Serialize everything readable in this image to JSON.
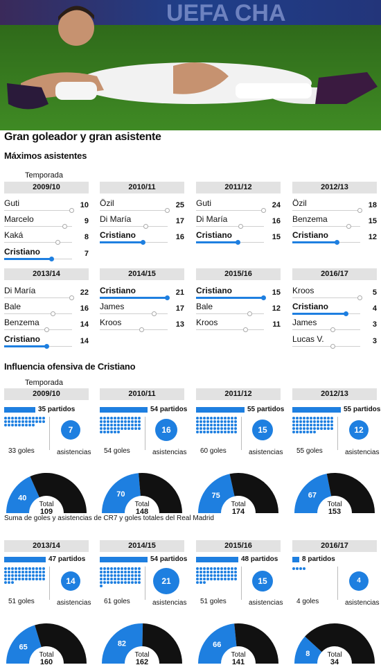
{
  "title": "Gran goleador y gran asistente",
  "section1": {
    "title": "Máximos asistentes",
    "temporada_label": "Temporada",
    "seasons": [
      {
        "year": "2009/10",
        "rows": [
          {
            "name": "Guti",
            "value": 10
          },
          {
            "name": "Marcelo",
            "value": 9
          },
          {
            "name": "Kaká",
            "value": 8
          },
          {
            "name": "Cristiano",
            "value": 7,
            "highlight": true
          }
        ]
      },
      {
        "year": "2010/11",
        "rows": [
          {
            "name": "Özil",
            "value": 25
          },
          {
            "name": "Di María",
            "value": 17
          },
          {
            "name": "Cristiano",
            "value": 16,
            "highlight": true
          }
        ]
      },
      {
        "year": "2011/12",
        "rows": [
          {
            "name": "Guti",
            "value": 24
          },
          {
            "name": "Di María",
            "value": 16
          },
          {
            "name": "Cristiano",
            "value": 15,
            "highlight": true
          }
        ]
      },
      {
        "year": "2012/13",
        "rows": [
          {
            "name": "Özil",
            "value": 18
          },
          {
            "name": "Benzema",
            "value": 15
          },
          {
            "name": "Cristiano",
            "value": 12,
            "highlight": true
          }
        ]
      },
      {
        "year": "2013/14",
        "rows": [
          {
            "name": "Di María",
            "value": 22
          },
          {
            "name": "Bale",
            "value": 16
          },
          {
            "name": "Benzema",
            "value": 14
          },
          {
            "name": "Cristiano",
            "value": 14,
            "highlight": true
          }
        ]
      },
      {
        "year": "2014/15",
        "rows": [
          {
            "name": "Cristiano",
            "value": 21,
            "highlight": true
          },
          {
            "name": "James",
            "value": 17
          },
          {
            "name": "Kroos",
            "value": 13
          }
        ]
      },
      {
        "year": "2015/16",
        "rows": [
          {
            "name": "Cristiano",
            "value": 15,
            "highlight": true
          },
          {
            "name": "Bale",
            "value": 12
          },
          {
            "name": "Kroos",
            "value": 11
          }
        ]
      },
      {
        "year": "2016/17",
        "rows": [
          {
            "name": "Kroos",
            "value": 5
          },
          {
            "name": "Cristiano",
            "value": 4,
            "highlight": true
          },
          {
            "name": "James",
            "value": 3
          },
          {
            "name": "Lucas V.",
            "value": 3
          }
        ]
      }
    ]
  },
  "section2": {
    "title": "Influencia ofensiva de Cristiano",
    "temporada_label": "Temporada",
    "caption": "Suma de goles y asistencias de CR7 y goles totales del Real Madrid",
    "total_label": "Total",
    "asistencias_label": "asistencias",
    "seasons": [
      {
        "year": "2009/10",
        "partidos": 35,
        "partidos_label": "35 partidos",
        "goles": 33,
        "goles_label": "33 goles",
        "asistencias": 7,
        "suma": 40,
        "total": 109
      },
      {
        "year": "2010/11",
        "partidos": 54,
        "partidos_label": "54 partidos",
        "goles": 54,
        "goles_label": "54 goles",
        "asistencias": 16,
        "suma": 70,
        "total": 148
      },
      {
        "year": "2011/12",
        "partidos": 55,
        "partidos_label": "55 partidos",
        "goles": 60,
        "goles_label": "60 goles",
        "asistencias": 15,
        "suma": 75,
        "total": 174
      },
      {
        "year": "2012/13",
        "partidos": 55,
        "partidos_label": "55 partidos",
        "goles": 55,
        "goles_label": "55 goles",
        "asistencias": 12,
        "suma": 67,
        "total": 153
      },
      {
        "year": "2013/14",
        "partidos": 47,
        "partidos_label": "47 partidos",
        "goles": 51,
        "goles_label": "51 goles",
        "asistencias": 14,
        "suma": 65,
        "total": 160
      },
      {
        "year": "2014/15",
        "partidos": 54,
        "partidos_label": "54 partidos",
        "goles": 61,
        "goles_label": "61 goles",
        "asistencias": 21,
        "suma": 82,
        "total": 162
      },
      {
        "year": "2015/16",
        "partidos": 48,
        "partidos_label": "48 partidos",
        "goles": 51,
        "goles_label": "51 goles",
        "asistencias": 15,
        "suma": 66,
        "total": 141
      },
      {
        "year": "2016/17",
        "partidos": 8,
        "partidos_label": "8 partidos",
        "goles": 4,
        "goles_label": "4 goles",
        "asistencias": 4,
        "suma": 8,
        "total": 34
      }
    ]
  },
  "photo_banner_text": "UEFA CHA",
  "colors": {
    "accent": "#1e7fe0",
    "dark": "#111111",
    "header_bg": "#e2e2e2"
  },
  "chart_data": [
    {
      "type": "bar",
      "title": "Máximos asistentes",
      "categories": [
        "2009/10",
        "2010/11",
        "2011/12",
        "2012/13",
        "2013/14",
        "2014/15",
        "2015/16",
        "2016/17"
      ],
      "series": [
        {
          "name": "Cristiano",
          "values": [
            7,
            16,
            15,
            12,
            14,
            21,
            15,
            4
          ]
        }
      ]
    },
    {
      "type": "pie",
      "title": "Influencia ofensiva de Cristiano",
      "categories": [
        "2009/10",
        "2010/11",
        "2011/12",
        "2012/13",
        "2013/14",
        "2014/15",
        "2015/16",
        "2016/17"
      ],
      "series": [
        {
          "name": "Suma de goles y asistencias de CR7",
          "values": [
            40,
            70,
            75,
            67,
            65,
            82,
            66,
            8
          ]
        },
        {
          "name": "Total",
          "values": [
            109,
            148,
            174,
            153,
            160,
            162,
            141,
            34
          ]
        }
      ]
    }
  ]
}
